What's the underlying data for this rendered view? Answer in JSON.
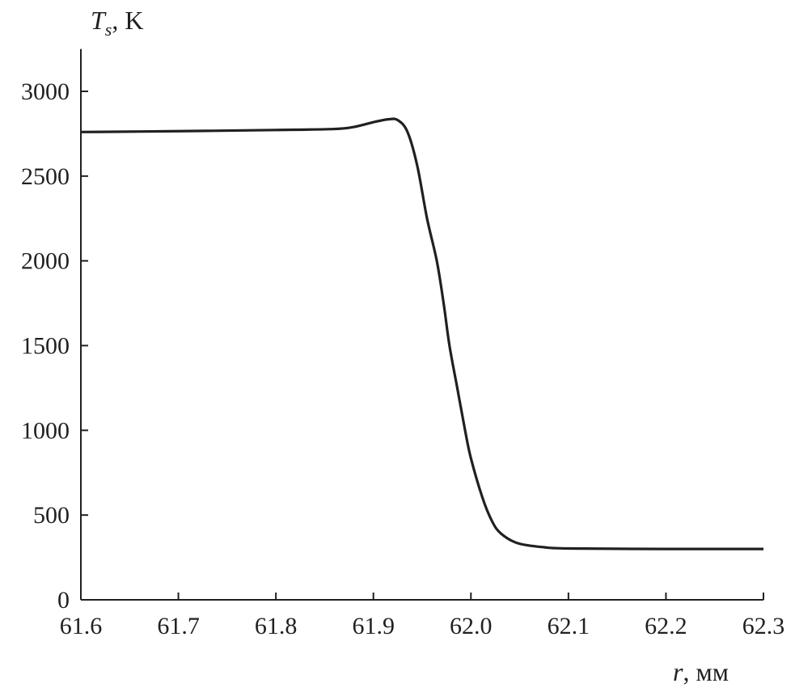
{
  "chart_data": {
    "type": "line",
    "title": "",
    "ylabel": {
      "symbol": "T",
      "subscript": "s",
      "unit": ", K"
    },
    "xlabel": {
      "symbol": "r",
      "unit": ", мм"
    },
    "xlim": [
      61.6,
      62.3
    ],
    "ylim": [
      0,
      3250
    ],
    "x_ticks": [
      "61.6",
      "61.7",
      "61.8",
      "61.9",
      "62.0",
      "62.1",
      "62.2",
      "62.3"
    ],
    "y_ticks": [
      "0",
      "500",
      "1000",
      "1500",
      "2000",
      "2500",
      "3000"
    ],
    "grid": false,
    "line_color": "#231f20",
    "series": [
      {
        "x": [
          61.6,
          61.7,
          61.8,
          61.86,
          61.88,
          61.9,
          61.915,
          61.925,
          61.935,
          61.945,
          61.955,
          61.965,
          61.972,
          61.978,
          61.986,
          61.994,
          62.0,
          62.012,
          62.022,
          62.031,
          62.048,
          62.075,
          62.1,
          62.2,
          62.3
        ],
        "y": [
          2760,
          2765,
          2772,
          2778,
          2790,
          2818,
          2835,
          2830,
          2760,
          2560,
          2250,
          2000,
          1750,
          1500,
          1250,
          1000,
          835,
          600,
          460,
          390,
          334,
          310,
          303,
          300,
          300
        ]
      }
    ]
  }
}
